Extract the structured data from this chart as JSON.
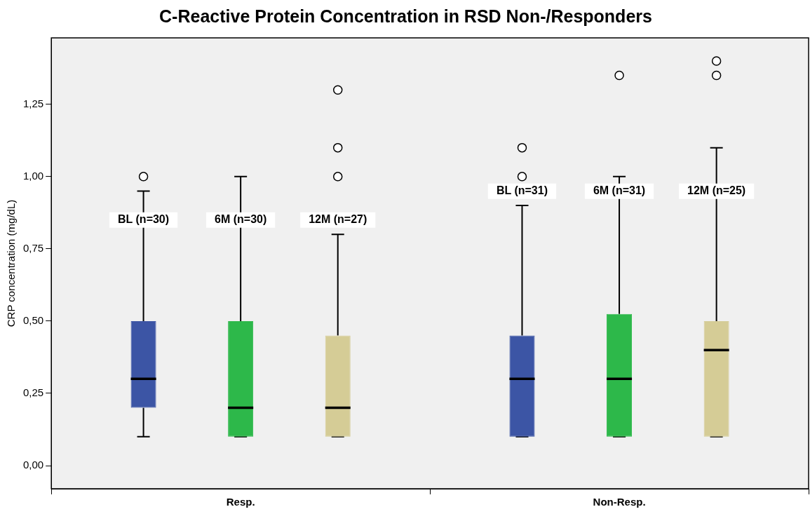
{
  "chart_data": {
    "type": "box",
    "title": "C-Reactive Protein Concentration in RSD Non-/Responders",
    "ylabel": "CRP concentration (mg/dL)",
    "categories": [
      "Resp.",
      "Non-Resp."
    ],
    "series": [
      {
        "color": "#3c55a5",
        "boxes": [
          {
            "low": 0.1,
            "q1": 0.2,
            "median": 0.3,
            "q3": 0.5,
            "high": 0.95,
            "outliers": [
              1.0
            ]
          },
          {
            "low": 0.1,
            "q1": 0.1,
            "median": 0.3,
            "q3": 0.45,
            "high": 0.9,
            "outliers": [
              1.0,
              1.1
            ]
          }
        ]
      },
      {
        "color": "#2db84a",
        "boxes": [
          {
            "low": 0.1,
            "q1": 0.1,
            "median": 0.2,
            "q3": 0.5,
            "high": 1.0
          },
          {
            "low": 0.1,
            "q1": 0.1,
            "median": 0.3,
            "q3": 0.525,
            "high": 1.0,
            "outliers": [
              1.35
            ]
          }
        ]
      },
      {
        "color": "#d5cc96",
        "boxes": [
          {
            "low": 0.1,
            "q1": 0.1,
            "median": 0.2,
            "q3": 0.45,
            "high": 0.8,
            "outliers": [
              1.0,
              1.1,
              1.3
            ]
          },
          {
            "low": 0.1,
            "q1": 0.1,
            "median": 0.4,
            "q3": 0.5,
            "high": 1.1,
            "outliers": [
              1.35,
              1.4
            ]
          }
        ]
      }
    ],
    "ylim": [
      -0.08,
      1.48
    ],
    "yticks": [
      {
        "value": 0,
        "label": "0,00"
      },
      {
        "value": 0.25,
        "label": "0,25"
      },
      {
        "value": 0.5,
        "label": "0,50"
      },
      {
        "value": 0.75,
        "label": "0,75"
      },
      {
        "value": 1,
        "label": "1,00"
      },
      {
        "value": 1.25,
        "label": "1,25"
      }
    ],
    "grid": false,
    "legend": false,
    "annotations": [
      "BL (n=30)",
      "6M (n=30)",
      "12M (n=27)",
      "BL (n=31)",
      "6M (n=31)",
      "12M (n=25)"
    ]
  }
}
